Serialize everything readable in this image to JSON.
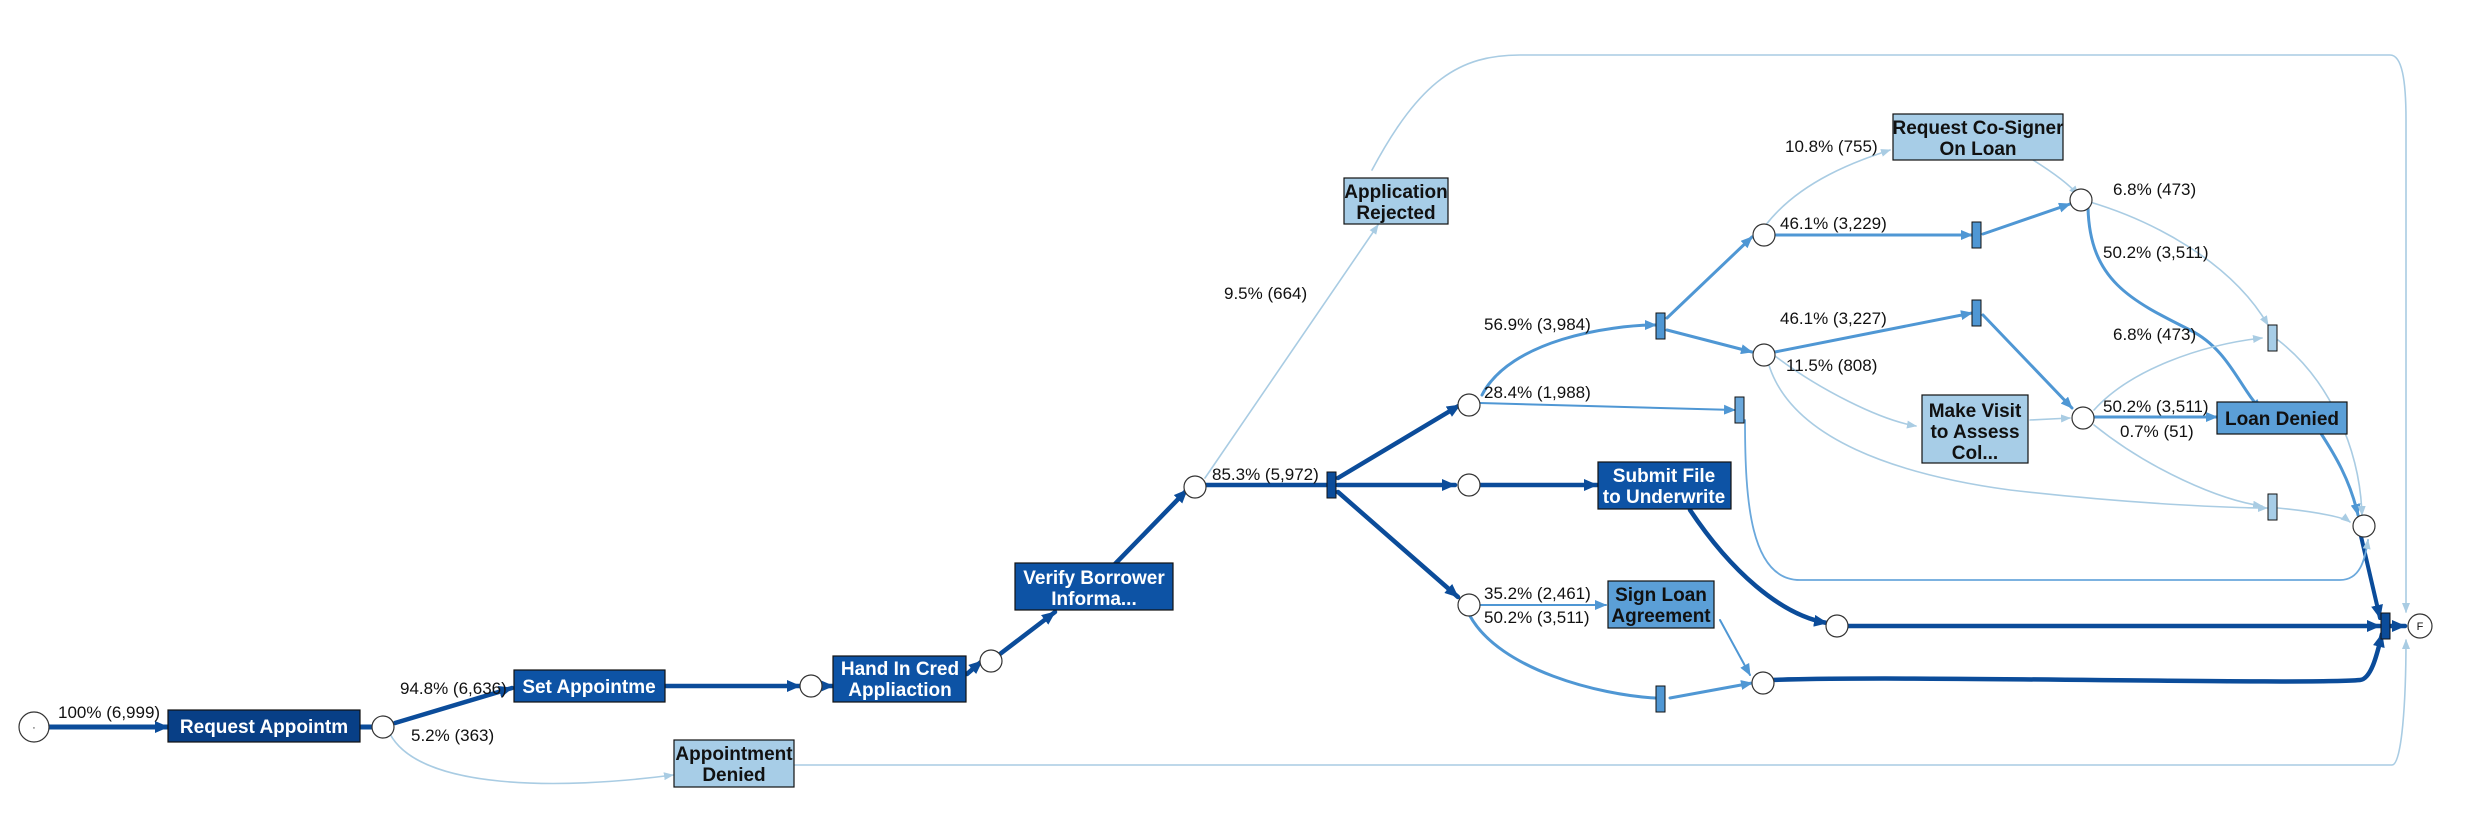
{
  "colors": {
    "edge_light": "#a9cce3",
    "edge_mid": "#4f97d4",
    "edge_dark": "#0b4c9a",
    "task_light": "#a7cde7",
    "task_mid": "#5b9fd7",
    "task_dark": "#0d53a5",
    "task_darkest": "#083f86"
  },
  "start_symbol": "·",
  "end_symbol": "F",
  "tasks": {
    "request_appointment": [
      "Request Appointm"
    ],
    "set_appointment": [
      "Set Appointme"
    ],
    "hand_in_credit": [
      "Hand In Cred",
      "Appliaction"
    ],
    "verify_borrower": [
      "Verify Borrower",
      "Informa..."
    ],
    "application_rejected": [
      "Application",
      "Rejected"
    ],
    "appointment_denied": [
      "Appointment",
      "Denied"
    ],
    "request_cosigner": [
      "Request Co-Signer",
      "On Loan"
    ],
    "make_visit": [
      "Make Visit",
      "to Assess",
      "Col..."
    ],
    "loan_denied": [
      "Loan Denied"
    ],
    "submit_file": [
      "Submit File",
      "to Underwrite"
    ],
    "sign_loan": [
      "Sign Loan",
      "Agreement"
    ]
  },
  "edge_labels": {
    "start_request": "100% (6,999)",
    "to_set_appointment": "94.8% (6,636)",
    "to_appointment_denied": "5.2% (363)",
    "to_application_rejected": "9.5% (664)",
    "verify_split": "85.3% (5,972)",
    "upper_branch": "56.9% (3,984)",
    "middle_upper_branch": "28.4% (1,988)",
    "lower_branch_a": "35.2% (2,461)",
    "lower_branch_b": "50.2% (3,511)",
    "to_cosigner": "10.8% (755)",
    "top_path_a": "46.1% (3,229)",
    "top_path_b": "46.1% (3,227)",
    "to_make_visit": "11.5% (808)",
    "right_a": "6.8% (473)",
    "right_b": "50.2% (3,511)",
    "right_c": "6.8% (473)",
    "right_d": "50.2% (3,511)",
    "right_e": "0.7% (51)"
  }
}
